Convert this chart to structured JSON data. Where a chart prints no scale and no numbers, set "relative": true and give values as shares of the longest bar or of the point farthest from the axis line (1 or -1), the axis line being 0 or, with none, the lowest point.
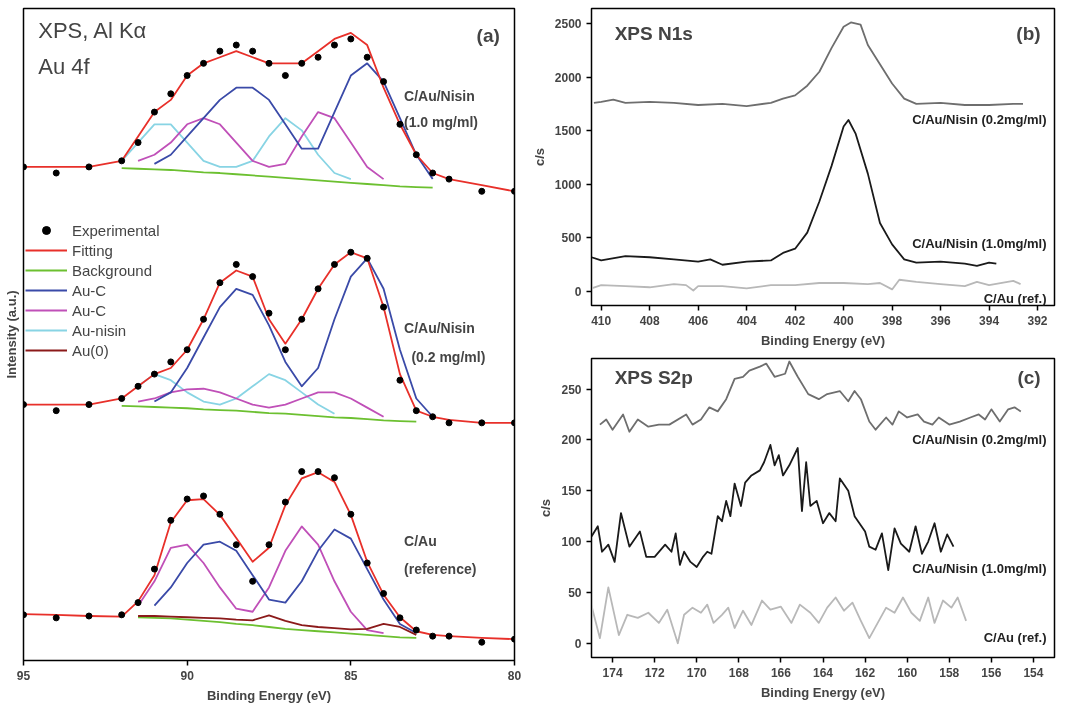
{
  "chart_data": [
    {
      "type": "line",
      "relative": true,
      "xlabel": "Binding Energy (eV)",
      "ylabel": "Intensity (a.u.)",
      "xlim": [
        95,
        80
      ],
      "xticks": [
        95,
        90,
        85,
        80
      ],
      "legend": "left",
      "grid": false,
      "x": [
        95,
        94,
        93,
        92,
        91.5,
        91,
        90.5,
        90,
        89.5,
        89,
        88.5,
        88,
        87.5,
        87,
        86.5,
        86,
        85.5,
        85,
        84.5,
        84,
        83.5,
        83,
        82.5,
        82,
        81,
        80
      ],
      "annotations": [
        "XPS, Al Kα",
        "Au 4f",
        "(a)",
        "C/Au/Nisin",
        "(1.0 mg/ml)",
        "C/Au/Nisin",
        "(0.2 mg/ml)",
        "C/Au",
        "(reference)"
      ],
      "series": [
        {
          "name": "Experimental",
          "type": "scatter",
          "marker": "circle",
          "color": "#000000",
          "values": [
            0.78,
            0.77,
            0.78,
            0.79,
            0.82,
            0.87,
            0.9,
            0.93,
            0.95,
            0.97,
            0.98,
            0.97,
            0.95,
            0.93,
            0.95,
            0.96,
            0.98,
            0.99,
            0.96,
            0.92,
            0.85,
            0.8,
            0.77,
            0.76,
            0.74,
            0.74
          ]
        },
        {
          "name": "Fitting",
          "color": "#e8302a",
          "values": [
            0.78,
            0.78,
            0.78,
            0.79,
            0.83,
            0.87,
            0.89,
            0.93,
            0.95,
            0.96,
            0.97,
            0.96,
            0.95,
            0.95,
            0.95,
            0.97,
            0.99,
            1.0,
            0.98,
            0.91,
            0.85,
            0.8,
            0.77,
            0.76,
            0.75,
            0.74
          ]
        },
        {
          "name": "Background",
          "color": "#6cc030",
          "values": [
            null,
            null,
            null,
            0.778,
            0.777,
            0.776,
            0.775,
            0.773,
            0.771,
            0.77,
            0.768,
            0.766,
            0.764,
            0.762,
            0.76,
            0.758,
            0.756,
            0.754,
            0.752,
            0.75,
            0.748,
            0.747,
            0.746,
            null,
            null,
            null
          ]
        },
        {
          "name": "Au-C",
          "color": "#3a4aa8",
          "values": [
            null,
            null,
            null,
            null,
            null,
            0.785,
            0.8,
            0.83,
            0.86,
            0.89,
            0.91,
            0.91,
            0.89,
            0.85,
            0.81,
            0.81,
            0.87,
            0.93,
            0.95,
            0.92,
            0.86,
            0.8,
            0.76,
            null,
            null,
            null
          ]
        },
        {
          "name": "Au-C",
          "color": "#c050b8",
          "values": [
            null,
            null,
            null,
            null,
            0.79,
            0.8,
            0.82,
            0.85,
            0.86,
            0.85,
            0.82,
            0.79,
            0.78,
            0.785,
            0.83,
            0.87,
            0.86,
            0.82,
            0.78,
            0.76,
            null,
            null,
            null,
            null,
            null,
            null
          ]
        },
        {
          "name": "Au-nisin",
          "color": "#88d4e4",
          "values": [
            null,
            null,
            null,
            0.79,
            0.82,
            0.85,
            0.85,
            0.82,
            0.79,
            0.78,
            0.78,
            0.79,
            0.83,
            0.86,
            0.84,
            0.8,
            0.77,
            0.76,
            null,
            null,
            null,
            null,
            null,
            null,
            null,
            null
          ]
        },
        {
          "name": "Au(0)",
          "color": "#8b1a1a",
          "values": [
            null,
            null,
            null,
            null,
            0.043,
            0.043,
            0.042,
            0.041,
            0.04,
            0.039,
            0.037,
            0.036,
            0.044,
            0.035,
            0.028,
            0.025,
            0.023,
            0.021,
            0.022,
            0.03,
            0.025,
            0.012,
            null,
            null,
            null,
            null
          ]
        },
        {
          "type": "scatter",
          "marker": "circle",
          "color": "#000000",
          "values": [
            0.39,
            0.38,
            0.39,
            0.4,
            0.42,
            0.44,
            0.46,
            0.48,
            0.53,
            0.59,
            0.62,
            0.6,
            0.54,
            0.48,
            0.53,
            0.58,
            0.62,
            0.64,
            0.63,
            0.55,
            0.43,
            0.38,
            0.37,
            0.36,
            0.36,
            0.36
          ]
        },
        {
          "color": "#e8302a",
          "values": [
            0.39,
            0.39,
            0.39,
            0.4,
            0.42,
            0.44,
            0.45,
            0.48,
            0.53,
            0.59,
            0.61,
            0.6,
            0.53,
            0.49,
            0.53,
            0.58,
            0.62,
            0.64,
            0.63,
            0.55,
            0.44,
            0.38,
            0.37,
            0.365,
            0.36,
            0.36
          ]
        },
        {
          "color": "#6cc030",
          "values": [
            null,
            null,
            null,
            0.388,
            0.387,
            0.386,
            0.385,
            0.384,
            0.382,
            0.381,
            0.38,
            0.378,
            0.376,
            0.375,
            0.373,
            0.371,
            0.369,
            0.368,
            0.366,
            0.364,
            0.363,
            0.362,
            null,
            null,
            null,
            null
          ]
        },
        {
          "color": "#3a4aa8",
          "values": [
            null,
            null,
            null,
            null,
            null,
            0.395,
            0.41,
            0.45,
            0.5,
            0.55,
            0.58,
            0.57,
            0.52,
            0.46,
            0.42,
            0.45,
            0.53,
            0.6,
            0.63,
            0.58,
            0.48,
            0.4,
            0.37,
            null,
            null,
            null
          ]
        },
        {
          "color": "#c050b8",
          "values": [
            null,
            null,
            null,
            null,
            0.395,
            0.4,
            0.41,
            0.415,
            0.416,
            0.41,
            0.4,
            0.39,
            0.385,
            0.39,
            0.4,
            0.41,
            0.41,
            0.4,
            0.385,
            0.37,
            null,
            null,
            null,
            null,
            null,
            null
          ]
        },
        {
          "color": "#88d4e4",
          "values": [
            null,
            null,
            null,
            null,
            0.42,
            0.44,
            0.43,
            0.41,
            0.395,
            0.39,
            0.4,
            0.42,
            0.44,
            0.43,
            0.41,
            0.39,
            0.375,
            null,
            null,
            null,
            null,
            null,
            null,
            null,
            null,
            null
          ]
        },
        {
          "type": "scatter",
          "marker": "circle",
          "color": "#000000",
          "values": [
            0.045,
            0.04,
            0.043,
            0.045,
            0.065,
            0.12,
            0.2,
            0.235,
            0.24,
            0.21,
            0.16,
            0.1,
            0.16,
            0.23,
            0.28,
            0.28,
            0.27,
            0.21,
            0.13,
            0.08,
            0.04,
            0.02,
            0.01,
            0.01,
            0.0,
            0.005
          ]
        },
        {
          "color": "#e8302a",
          "values": [
            0.046,
            0.045,
            0.043,
            0.042,
            0.067,
            0.11,
            0.197,
            0.233,
            0.235,
            0.209,
            0.171,
            0.132,
            0.155,
            0.225,
            0.269,
            0.279,
            0.263,
            0.209,
            0.132,
            0.078,
            0.041,
            0.018,
            0.012,
            0.01,
            0.007,
            0.005
          ]
        },
        {
          "color": "#6cc030",
          "values": [
            null,
            null,
            null,
            null,
            0.041,
            0.04,
            0.039,
            0.037,
            0.035,
            0.033,
            0.03,
            0.028,
            0.025,
            0.022,
            0.02,
            0.018,
            0.016,
            0.014,
            0.012,
            0.01,
            0.008,
            0.007,
            null,
            null,
            null,
            null
          ]
        },
        {
          "color": "#3a4aa8",
          "values": [
            null,
            null,
            null,
            null,
            null,
            0.06,
            0.09,
            0.13,
            0.16,
            0.165,
            0.15,
            0.11,
            0.07,
            0.065,
            0.1,
            0.15,
            0.185,
            0.17,
            0.12,
            0.07,
            0.03,
            0.015,
            null,
            null,
            null,
            null
          ]
        },
        {
          "color": "#c050b8",
          "values": [
            null,
            null,
            null,
            null,
            0.06,
            0.1,
            0.155,
            0.16,
            0.13,
            0.09,
            0.055,
            0.05,
            0.09,
            0.15,
            0.19,
            0.16,
            0.1,
            0.05,
            0.02,
            0.015,
            null,
            null,
            null,
            null,
            null,
            null
          ]
        }
      ]
    },
    {
      "type": "line",
      "xlabel": "Binding Energy (eV)",
      "ylabel": "c/s",
      "xlim": [
        410.4,
        391.3
      ],
      "xticks": [
        410,
        408,
        406,
        404,
        402,
        400,
        398,
        396,
        394,
        392
      ],
      "ylim": [
        -130,
        2640
      ],
      "yticks": [
        0,
        500,
        1000,
        1500,
        2000,
        2500
      ],
      "grid": false,
      "annotations": [
        "XPS N1s",
        "(b)"
      ],
      "series": [
        {
          "name": "C/Au/Nisin (0.2mg/ml)",
          "color": "#6e6e6e",
          "x": [
            410.3,
            410,
            409.5,
            409,
            408,
            407,
            406,
            405,
            404,
            403,
            402.5,
            402,
            401.5,
            401,
            400.5,
            400,
            399.7,
            399.3,
            399,
            398.5,
            398,
            397.5,
            397,
            396,
            395,
            394,
            393,
            392.6
          ],
          "values": [
            1760,
            1770,
            1790,
            1760,
            1770,
            1760,
            1740,
            1750,
            1730,
            1760,
            1800,
            1830,
            1920,
            2050,
            2270,
            2470,
            2510,
            2490,
            2300,
            2120,
            1940,
            1800,
            1750,
            1760,
            1740,
            1740,
            1750,
            1750
          ]
        },
        {
          "name": "C/Au/Nisin (1.0mg/ml)",
          "color": "#1a1a1a",
          "x": [
            410.4,
            410,
            409,
            408,
            407,
            406,
            405.5,
            405,
            404,
            403,
            402.5,
            402,
            401.5,
            401,
            400.5,
            400,
            399.8,
            399.5,
            399,
            398.5,
            398,
            397.5,
            397,
            396,
            395,
            394.5,
            394,
            393.7
          ],
          "values": [
            320,
            290,
            330,
            320,
            300,
            280,
            300,
            250,
            280,
            290,
            360,
            400,
            550,
            840,
            1170,
            1540,
            1600,
            1470,
            1100,
            640,
            440,
            300,
            270,
            280,
            260,
            240,
            270,
            260
          ]
        },
        {
          "name": "C/Au (ref.)",
          "color": "#b8b8b8",
          "x": [
            410.4,
            410,
            409,
            408,
            407,
            406.5,
            406.2,
            406,
            405,
            404,
            403,
            402,
            401,
            400,
            399,
            398.5,
            398,
            397.7,
            397,
            396,
            395,
            394.5,
            394,
            393,
            392.7
          ],
          "values": [
            30,
            60,
            50,
            40,
            70,
            60,
            10,
            50,
            50,
            30,
            60,
            60,
            80,
            80,
            70,
            80,
            20,
            110,
            90,
            70,
            50,
            90,
            60,
            100,
            70
          ]
        }
      ]
    },
    {
      "type": "line",
      "xlabel": "Binding Energy (eV)",
      "ylabel": "c/s",
      "xlim": [
        175,
        153
      ],
      "xticks": [
        174,
        172,
        170,
        168,
        166,
        164,
        162,
        160,
        158,
        156,
        154
      ],
      "ylim": [
        -14,
        280
      ],
      "yticks": [
        0,
        50,
        100,
        150,
        200,
        250
      ],
      "grid": false,
      "annotations": [
        "XPS S2p",
        "(c)"
      ],
      "series": [
        {
          "name": "C/Au/Nisin (0.2mg/ml)",
          "color": "#6e6e6e",
          "x": [
            174.6,
            174.3,
            174,
            173.5,
            173.2,
            172.8,
            172.3,
            171.8,
            171.3,
            170.5,
            170.2,
            169.8,
            169.4,
            169,
            168.6,
            168.2,
            167.8,
            167.5,
            167,
            166.7,
            166.3,
            165.8,
            165.6,
            165.2,
            164.7,
            164.2,
            163.8,
            163.2,
            162.8,
            162.5,
            162.2,
            161.8,
            161.5,
            161,
            160.7,
            160.4,
            160,
            159.5,
            159.2,
            158.8,
            158.5,
            158,
            157.5,
            157,
            156.6,
            156.3,
            156,
            155.6,
            155.2,
            154.9,
            154.6
          ],
          "values": [
            215,
            220,
            210,
            225,
            208,
            220,
            213,
            215,
            215,
            225,
            215,
            220,
            232,
            228,
            240,
            260,
            262,
            268,
            272,
            275,
            262,
            265,
            277,
            262,
            245,
            240,
            245,
            248,
            238,
            248,
            240,
            218,
            210,
            222,
            215,
            228,
            222,
            225,
            218,
            215,
            222,
            215,
            218,
            222,
            225,
            220,
            230,
            218,
            230,
            232,
            228
          ]
        },
        {
          "name": "C/Au/Nisin (1.0mg/ml)",
          "color": "#1a1a1a",
          "x": [
            175,
            174.7,
            174.5,
            174.2,
            173.9,
            173.6,
            173.2,
            172.7,
            172.4,
            172,
            171.5,
            171.2,
            171,
            170.8,
            170.6,
            170.3,
            170,
            169.7,
            169.5,
            169.3,
            169,
            168.8,
            168.6,
            168.4,
            168.2,
            167.9,
            167.7,
            167.4,
            167,
            166.8,
            166.5,
            166.3,
            166.1,
            165.9,
            165.6,
            165.2,
            165,
            164.8,
            164.6,
            164.3,
            164,
            163.7,
            163.4,
            163.2,
            162.8,
            162.5,
            162,
            161.8,
            161.5,
            161.2,
            160.9,
            160.6,
            160.3,
            159.9,
            159.6,
            159.3,
            159,
            158.7,
            158.4,
            158.1,
            157.8
          ],
          "values": [
            105,
            115,
            90,
            97,
            80,
            128,
            95,
            110,
            85,
            85,
            97,
            90,
            108,
            77,
            90,
            80,
            75,
            85,
            90,
            88,
            125,
            120,
            140,
            125,
            157,
            135,
            158,
            165,
            170,
            178,
            195,
            175,
            185,
            165,
            175,
            192,
            130,
            178,
            135,
            140,
            118,
            128,
            120,
            162,
            150,
            125,
            110,
            95,
            92,
            108,
            72,
            113,
            98,
            90,
            115,
            88,
            100,
            118,
            90,
            107,
            95
          ]
        },
        {
          "name": "C/Au (ref.)",
          "color": "#b8b8b8",
          "x": [
            175,
            174.6,
            174.2,
            173.7,
            173.3,
            172.8,
            172.3,
            171.8,
            171.4,
            170.9,
            170.6,
            170.2,
            169.8,
            169.5,
            169.2,
            168.8,
            168.5,
            168.2,
            167.8,
            167.4,
            166.9,
            166.5,
            166,
            165.5,
            165.1,
            164.6,
            164.2,
            163.8,
            163.4,
            163,
            162.6,
            162.2,
            161.8,
            161.4,
            161,
            160.6,
            160.2,
            159.8,
            159.4,
            159,
            158.7,
            158.3,
            157.9,
            157.6,
            157.2
          ],
          "values": [
            37,
            5,
            55,
            8,
            28,
            25,
            30,
            20,
            33,
            0,
            28,
            35,
            30,
            38,
            20,
            28,
            35,
            15,
            32,
            18,
            42,
            33,
            36,
            20,
            38,
            30,
            20,
            35,
            45,
            32,
            40,
            22,
            5,
            20,
            35,
            30,
            45,
            30,
            22,
            45,
            20,
            42,
            35,
            45,
            22
          ]
        }
      ]
    }
  ]
}
